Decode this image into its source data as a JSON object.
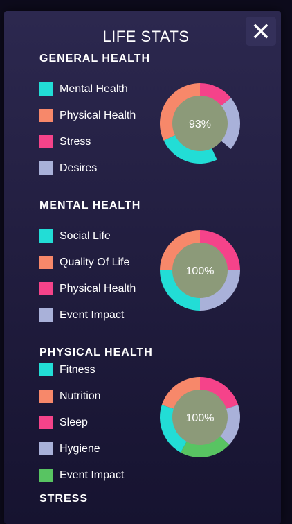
{
  "dialog": {
    "title": "LIFE STATS"
  },
  "colors": {
    "teal": "#22ddd6",
    "salmon": "#f7886a",
    "pink": "#f5438a",
    "lavender": "#a9b1d9",
    "green": "#58c462",
    "center": "#8c9a79"
  },
  "sections": [
    {
      "title": "GENERAL HEALTH",
      "legend": [
        {
          "label": "Mental Health",
          "color": "#22ddd6"
        },
        {
          "label": "Physical Health",
          "color": "#f7886a"
        },
        {
          "label": "Stress",
          "color": "#f5438a"
        },
        {
          "label": "Desires",
          "color": "#a9b1d9"
        }
      ],
      "chart": {
        "center_label": "93%",
        "slices": [
          {
            "name": "Stress",
            "color": "#f5438a",
            "value": 14
          },
          {
            "name": "Desires",
            "color": "#a9b1d9",
            "value": 22
          },
          {
            "name": "Gap",
            "color": "none",
            "value": 7
          },
          {
            "name": "Mental Health",
            "color": "#22ddd6",
            "value": 25
          },
          {
            "name": "Physical Health",
            "color": "#f7886a",
            "value": 32
          }
        ]
      }
    },
    {
      "title": "MENTAL HEALTH",
      "legend": [
        {
          "label": "Social Life",
          "color": "#22ddd6"
        },
        {
          "label": "Quality Of Life",
          "color": "#f7886a"
        },
        {
          "label": "Physical Health",
          "color": "#f5438a"
        },
        {
          "label": "Event Impact",
          "color": "#a9b1d9"
        }
      ],
      "chart": {
        "center_label": "100%",
        "slices": [
          {
            "name": "Physical Health",
            "color": "#f5438a",
            "value": 25
          },
          {
            "name": "Event Impact",
            "color": "#a9b1d9",
            "value": 25
          },
          {
            "name": "Social Life",
            "color": "#22ddd6",
            "value": 25
          },
          {
            "name": "Quality Of Life",
            "color": "#f7886a",
            "value": 25
          }
        ]
      }
    },
    {
      "title": "PHYSICAL HEALTH",
      "legend": [
        {
          "label": "Fitness",
          "color": "#22ddd6"
        },
        {
          "label": "Nutrition",
          "color": "#f7886a"
        },
        {
          "label": "Sleep",
          "color": "#f5438a"
        },
        {
          "label": "Hygiene",
          "color": "#a9b1d9"
        },
        {
          "label": "Event Impact",
          "color": "#58c462"
        }
      ],
      "chart": {
        "center_label": "100%",
        "slices": [
          {
            "name": "Sleep",
            "color": "#f5438a",
            "value": 20
          },
          {
            "name": "Hygiene",
            "color": "#a9b1d9",
            "value": 17
          },
          {
            "name": "Event Impact",
            "color": "#58c462",
            "value": 21
          },
          {
            "name": "Fitness",
            "color": "#22ddd6",
            "value": 22
          },
          {
            "name": "Nutrition",
            "color": "#f7886a",
            "value": 20
          }
        ]
      }
    },
    {
      "title": "STRESS",
      "legend": []
    }
  ]
}
